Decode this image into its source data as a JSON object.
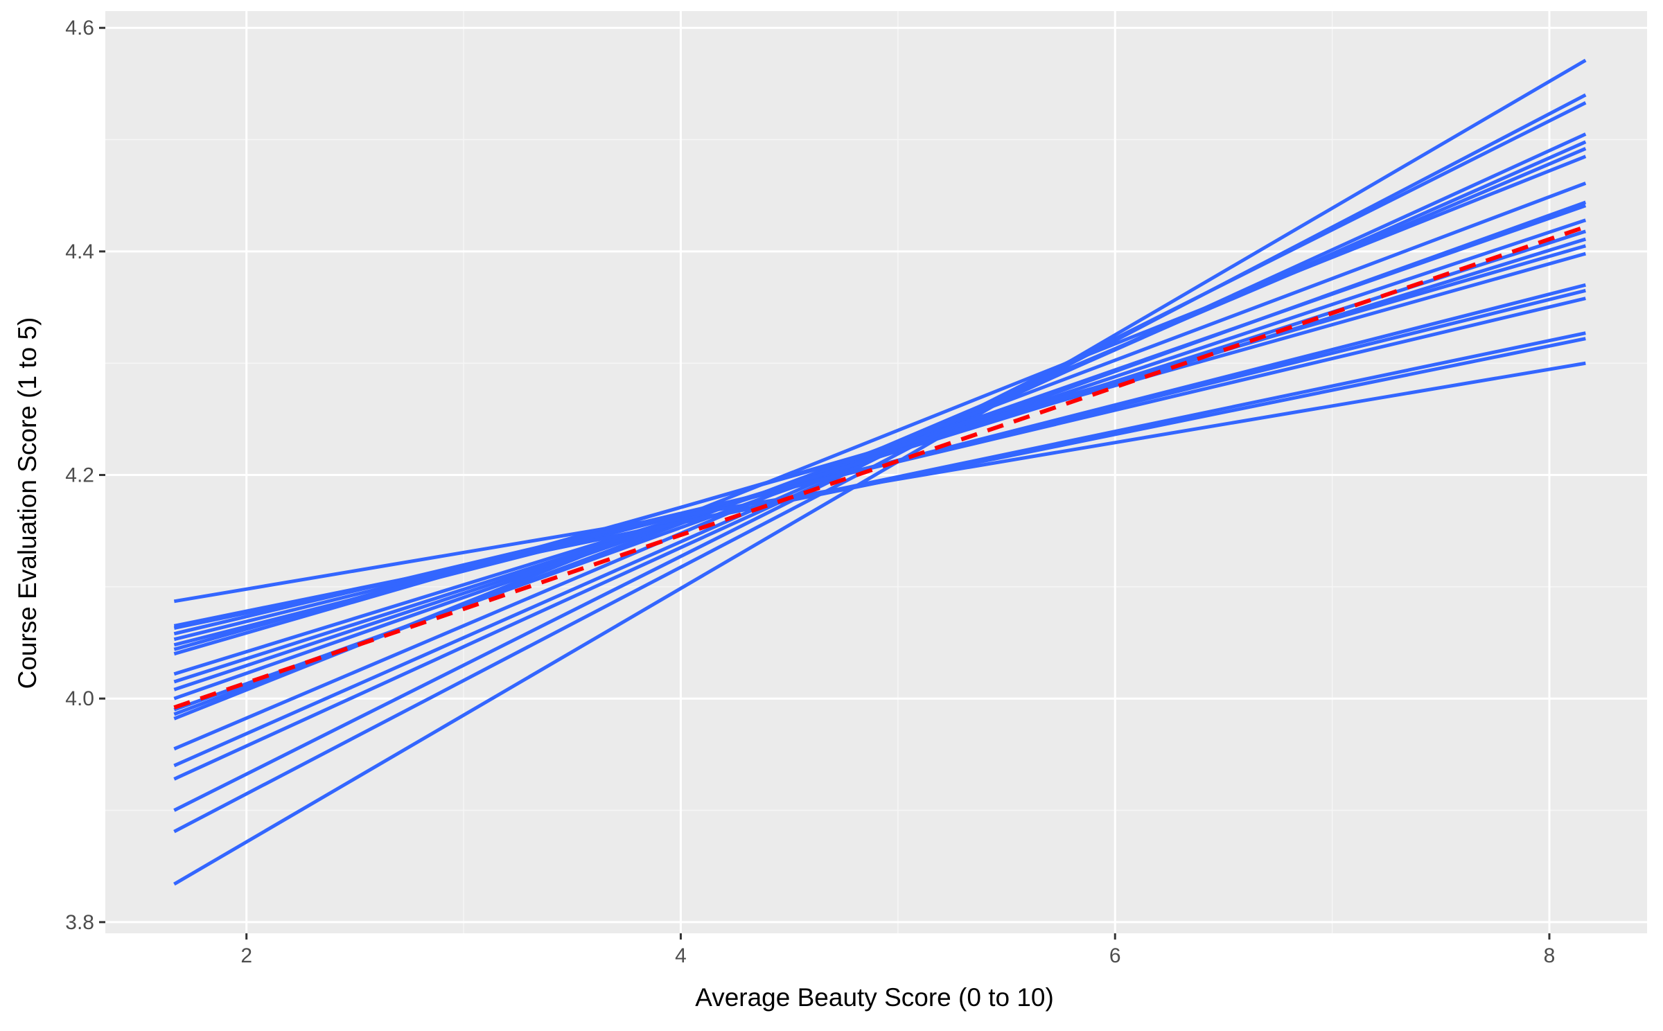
{
  "chart_data": {
    "type": "line",
    "title": "",
    "xlabel": "Average Beauty Score (0 to 10)",
    "ylabel": "Course Evaluation Score (1 to 5)",
    "xlim": [
      1.35,
      8.45
    ],
    "ylim": [
      3.79,
      4.615
    ],
    "x_ticks": [
      2,
      4,
      6,
      8
    ],
    "x_tick_labels": [
      "2",
      "4",
      "6",
      "8"
    ],
    "y_ticks": [
      3.8,
      4.0,
      4.2,
      4.4,
      4.6
    ],
    "y_tick_labels": [
      "3.8",
      "4.0",
      "4.2",
      "4.4",
      "4.6"
    ],
    "grid": true,
    "legend": "none",
    "x_range": [
      1.667,
      8.167
    ],
    "series": [
      {
        "color": "#3366FF",
        "dashed": false,
        "values": [
          3.834,
          4.571
        ]
      },
      {
        "color": "#3366FF",
        "dashed": false,
        "values": [
          3.881,
          4.54
        ]
      },
      {
        "color": "#3366FF",
        "dashed": false,
        "values": [
          3.9,
          4.533
        ]
      },
      {
        "color": "#3366FF",
        "dashed": false,
        "values": [
          3.928,
          4.505
        ]
      },
      {
        "color": "#3366FF",
        "dashed": false,
        "values": [
          3.94,
          4.498
        ]
      },
      {
        "color": "#3366FF",
        "dashed": false,
        "values": [
          3.955,
          4.492
        ]
      },
      {
        "color": "#3366FF",
        "dashed": false,
        "values": [
          3.982,
          4.485
        ]
      },
      {
        "color": "#3366FF",
        "dashed": false,
        "values": [
          3.986,
          4.461
        ]
      },
      {
        "color": "#3366FF",
        "dashed": false,
        "values": [
          3.99,
          4.444
        ]
      },
      {
        "color": "#3366FF",
        "dashed": false,
        "values": [
          4.0,
          4.441
        ]
      },
      {
        "color": "#3366FF",
        "dashed": false,
        "values": [
          4.008,
          4.428
        ]
      },
      {
        "color": "#3366FF",
        "dashed": false,
        "values": [
          4.015,
          4.418
        ]
      },
      {
        "color": "#3366FF",
        "dashed": false,
        "values": [
          4.022,
          4.411
        ]
      },
      {
        "color": "#3366FF",
        "dashed": false,
        "values": [
          4.04,
          4.405
        ]
      },
      {
        "color": "#3366FF",
        "dashed": false,
        "values": [
          4.044,
          4.398
        ]
      },
      {
        "color": "#3366FF",
        "dashed": false,
        "values": [
          4.048,
          4.37
        ]
      },
      {
        "color": "#3366FF",
        "dashed": false,
        "values": [
          4.053,
          4.365
        ]
      },
      {
        "color": "#3366FF",
        "dashed": false,
        "values": [
          4.058,
          4.358
        ]
      },
      {
        "color": "#3366FF",
        "dashed": false,
        "values": [
          4.063,
          4.327
        ]
      },
      {
        "color": "#3366FF",
        "dashed": false,
        "values": [
          4.065,
          4.322
        ]
      },
      {
        "color": "#3366FF",
        "dashed": false,
        "values": [
          4.087,
          4.3
        ]
      },
      {
        "color": "#FF0000",
        "dashed": true,
        "values": [
          3.992,
          4.422
        ]
      }
    ]
  },
  "colors": {
    "panel_background": "#EBEBEB",
    "grid_major": "#FFFFFF",
    "grid_minor": "#F6F6F6",
    "series_line": "#3366FF",
    "mean_line": "#FF0000",
    "tick_label": "#4D4D4D",
    "tick_mark": "#333333"
  }
}
